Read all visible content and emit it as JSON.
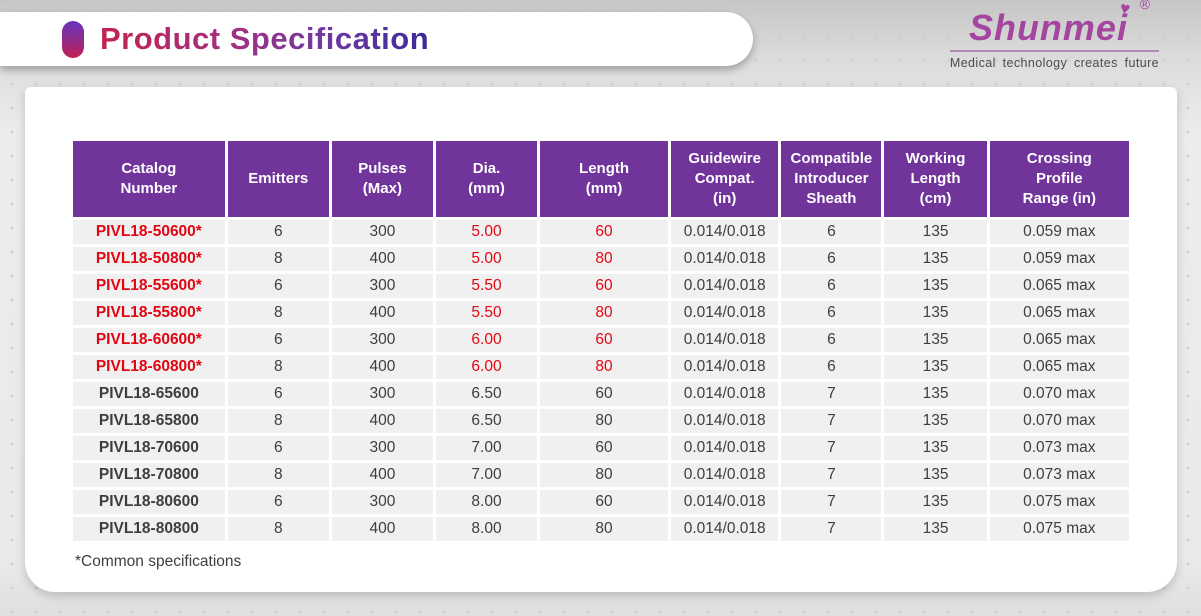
{
  "header": {
    "title": "Product Specification"
  },
  "logo": {
    "brand": "Shunmei",
    "heart_icon": "♥",
    "registered_mark": "®",
    "tagline": "Medical technology creates future"
  },
  "colors": {
    "table_header_purple": "#70349B",
    "highlight_red": "#E20613",
    "brand_purple": "#A4459F",
    "title_gradient_start": "#C42350",
    "title_gradient_end": "#392B9A",
    "row_background": "#F0F0F0"
  },
  "table": {
    "columns": [
      {
        "key": "catalog",
        "label": "Catalog\nNumber"
      },
      {
        "key": "emitters",
        "label": "Emitters"
      },
      {
        "key": "pulses",
        "label": "Pulses\n(Max)"
      },
      {
        "key": "dia",
        "label": "Dia.\n(mm)"
      },
      {
        "key": "length",
        "label": "Length\n(mm)"
      },
      {
        "key": "guidewire",
        "label": "Guidewire\nCompat.\n(in)"
      },
      {
        "key": "sheath",
        "label": "Compatible\nIntroducer\nSheath"
      },
      {
        "key": "working",
        "label": "Working\nLength\n(cm)"
      },
      {
        "key": "crossing",
        "label": "Crossing\nProfile\nRange (in)"
      }
    ],
    "rows": [
      {
        "catalog": "PIVL18-50600*",
        "emitters": "6",
        "pulses": "300",
        "dia": "5.00",
        "length": "60",
        "guidewire": "0.014/0.018",
        "sheath": "6",
        "working": "135",
        "crossing": "0.059 max",
        "common": true
      },
      {
        "catalog": "PIVL18-50800*",
        "emitters": "8",
        "pulses": "400",
        "dia": "5.00",
        "length": "80",
        "guidewire": "0.014/0.018",
        "sheath": "6",
        "working": "135",
        "crossing": "0.059 max",
        "common": true
      },
      {
        "catalog": "PIVL18-55600*",
        "emitters": "6",
        "pulses": "300",
        "dia": "5.50",
        "length": "60",
        "guidewire": "0.014/0.018",
        "sheath": "6",
        "working": "135",
        "crossing": "0.065 max",
        "common": true
      },
      {
        "catalog": "PIVL18-55800*",
        "emitters": "8",
        "pulses": "400",
        "dia": "5.50",
        "length": "80",
        "guidewire": "0.014/0.018",
        "sheath": "6",
        "working": "135",
        "crossing": "0.065 max",
        "common": true
      },
      {
        "catalog": "PIVL18-60600*",
        "emitters": "6",
        "pulses": "300",
        "dia": "6.00",
        "length": "60",
        "guidewire": "0.014/0.018",
        "sheath": "6",
        "working": "135",
        "crossing": "0.065 max",
        "common": true
      },
      {
        "catalog": "PIVL18-60800*",
        "emitters": "8",
        "pulses": "400",
        "dia": "6.00",
        "length": "80",
        "guidewire": "0.014/0.018",
        "sheath": "6",
        "working": "135",
        "crossing": "0.065 max",
        "common": true
      },
      {
        "catalog": "PIVL18-65600",
        "emitters": "6",
        "pulses": "300",
        "dia": "6.50",
        "length": "60",
        "guidewire": "0.014/0.018",
        "sheath": "7",
        "working": "135",
        "crossing": "0.070 max",
        "common": false
      },
      {
        "catalog": "PIVL18-65800",
        "emitters": "8",
        "pulses": "400",
        "dia": "6.50",
        "length": "80",
        "guidewire": "0.014/0.018",
        "sheath": "7",
        "working": "135",
        "crossing": "0.070 max",
        "common": false
      },
      {
        "catalog": "PIVL18-70600",
        "emitters": "6",
        "pulses": "300",
        "dia": "7.00",
        "length": "60",
        "guidewire": "0.014/0.018",
        "sheath": "7",
        "working": "135",
        "crossing": "0.073 max",
        "common": false
      },
      {
        "catalog": "PIVL18-70800",
        "emitters": "8",
        "pulses": "400",
        "dia": "7.00",
        "length": "80",
        "guidewire": "0.014/0.018",
        "sheath": "7",
        "working": "135",
        "crossing": "0.073 max",
        "common": false
      },
      {
        "catalog": "PIVL18-80600",
        "emitters": "6",
        "pulses": "300",
        "dia": "8.00",
        "length": "60",
        "guidewire": "0.014/0.018",
        "sheath": "7",
        "working": "135",
        "crossing": "0.075 max",
        "common": false
      },
      {
        "catalog": "PIVL18-80800",
        "emitters": "8",
        "pulses": "400",
        "dia": "8.00",
        "length": "80",
        "guidewire": "0.014/0.018",
        "sheath": "7",
        "working": "135",
        "crossing": "0.075 max",
        "common": false
      }
    ]
  },
  "footnote": "*Common specifications"
}
